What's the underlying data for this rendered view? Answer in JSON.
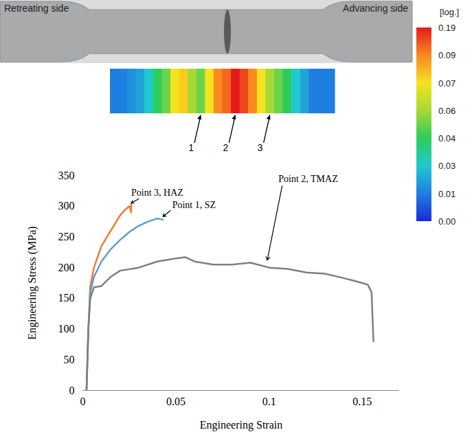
{
  "specimen": {
    "left_label": "Retreating side",
    "right_label": "Advancing side"
  },
  "colorbar": {
    "label": "[log.]",
    "range": [
      0,
      0.19
    ],
    "ticks": [
      0.19,
      0.09,
      0.07,
      0.06,
      0.04,
      0.03,
      0.01,
      {
        "value": 0,
        "label": "0.00"
      }
    ],
    "colors": [
      "#e41a1c",
      "#f98a1f",
      "#f5e21f",
      "#a6d936",
      "#2ecc5a",
      "#20c9d0",
      "#1f7fe0",
      "#1a2bd6"
    ]
  },
  "strain_map": {
    "values": [
      0.01,
      0.01,
      0.015,
      0.02,
      0.03,
      0.04,
      0.05,
      0.07,
      0.075,
      0.06,
      0.05,
      0.07,
      0.09,
      0.12,
      0.19,
      0.15,
      0.09,
      0.07,
      0.06,
      0.05,
      0.04,
      0.03,
      0.02,
      0.01,
      0.01,
      0.01
    ],
    "points": [
      {
        "label": "1",
        "index": 10
      },
      {
        "label": "2",
        "index": 14
      },
      {
        "label": "3",
        "index": 18
      }
    ]
  },
  "chart_data": {
    "type": "line",
    "x_label": "Engineering Strain",
    "y_label": "Engineering Stress (MPa)",
    "xlim": [
      0,
      0.17
    ],
    "ylim": [
      0,
      350
    ],
    "xticks": [
      0,
      0.05,
      0.1,
      0.15
    ],
    "yticks": [
      0,
      50,
      100,
      150,
      200,
      250,
      300,
      350
    ],
    "grid": false,
    "series": [
      {
        "name": "Point 3, HAZ",
        "color": "#ed7d31",
        "x": [
          0.002,
          0.003,
          0.004,
          0.006,
          0.01,
          0.015,
          0.02,
          0.023,
          0.025,
          0.026,
          0.026
        ],
        "values": [
          0,
          100,
          170,
          200,
          235,
          260,
          285,
          295,
          300,
          290,
          305
        ],
        "annotation": {
          "x": 0.026,
          "y": 318,
          "arrow": [
            0.03,
            312,
            0.026,
            305
          ]
        }
      },
      {
        "name": "Point 1, SZ",
        "color": "#5b9bd5",
        "x": [
          0.002,
          0.003,
          0.004,
          0.006,
          0.01,
          0.015,
          0.02,
          0.025,
          0.03,
          0.035,
          0.04,
          0.043
        ],
        "values": [
          0,
          100,
          160,
          185,
          210,
          230,
          245,
          258,
          268,
          275,
          280,
          278
        ],
        "annotation": {
          "x": 0.048,
          "y": 297,
          "arrow": [
            0.047,
            293,
            0.043,
            283
          ]
        }
      },
      {
        "name": "Point 2, TMAZ",
        "color": "#7f7f7f",
        "x": [
          0.002,
          0.003,
          0.004,
          0.006,
          0.01,
          0.015,
          0.02,
          0.03,
          0.04,
          0.05,
          0.055,
          0.06,
          0.07,
          0.08,
          0.09,
          0.1,
          0.11,
          0.12,
          0.13,
          0.14,
          0.15,
          0.153,
          0.155,
          0.156
        ],
        "values": [
          0,
          100,
          150,
          168,
          170,
          185,
          195,
          200,
          210,
          215,
          217,
          210,
          205,
          205,
          208,
          200,
          198,
          192,
          190,
          183,
          175,
          172,
          160,
          80
        ],
        "annotation": {
          "x": 0.105,
          "y": 340,
          "arrow": [
            0.107,
            333,
            0.099,
            212
          ]
        }
      }
    ]
  }
}
